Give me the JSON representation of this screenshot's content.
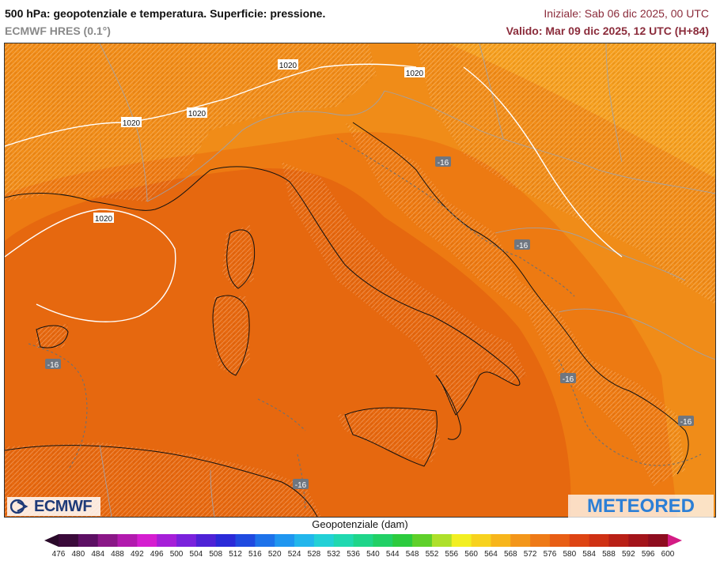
{
  "header": {
    "title": "500 hPa: geopotenziale e temperatura. Superficie: pressione.",
    "model": "ECMWF HRES (0.1°)",
    "init": "Iniziale: Sab 06 dic 2025, 00 UTC",
    "valid": "Valido: Mar 09 dic 2025, 12 UTC (H+84)"
  },
  "map": {
    "isobar_labels": [
      "1020",
      "1020",
      "1020",
      "1020",
      "1020"
    ],
    "isotherm_labels": [
      "-16",
      "-16",
      "-16",
      "-16",
      "-16",
      "-16"
    ],
    "colors": {
      "fill_main": "#e6680f",
      "fill_mid": "#ed7a12",
      "fill_outer": "#f08c18",
      "fill_light": "#f59f1f",
      "isobar": "#ffffff",
      "isotherm": "#7a7a7a"
    }
  },
  "logos": {
    "ecmwf": "ECMWF",
    "meteored": "METEORED"
  },
  "colorbar": {
    "title": "Geopotenziale (dam)",
    "labels": [
      "476",
      "480",
      "484",
      "488",
      "492",
      "496",
      "500",
      "504",
      "508",
      "512",
      "516",
      "520",
      "524",
      "528",
      "532",
      "536",
      "540",
      "544",
      "548",
      "552",
      "556",
      "560",
      "564",
      "568",
      "572",
      "576",
      "580",
      "584",
      "588",
      "592",
      "596",
      "600"
    ],
    "colors": [
      "#3a0a3a",
      "#5c0f63",
      "#8a1787",
      "#b21aae",
      "#d51ed0",
      "#a61fd8",
      "#7a22dc",
      "#4e22d6",
      "#2a2ad8",
      "#1f4ae0",
      "#1d72ea",
      "#1f96f0",
      "#22b6ec",
      "#22d0d6",
      "#20d8b0",
      "#1fd58a",
      "#21d066",
      "#2ccb3e",
      "#5fd02a",
      "#aee02a",
      "#f2ef22",
      "#f7d21e",
      "#f7b51b",
      "#f3961a",
      "#ee7a17",
      "#e85e15",
      "#de4413",
      "#cf3114",
      "#b92016",
      "#a3141a",
      "#8e0d1f"
    ],
    "end_left": "#2a0a2a",
    "end_right": "#d41c84"
  }
}
